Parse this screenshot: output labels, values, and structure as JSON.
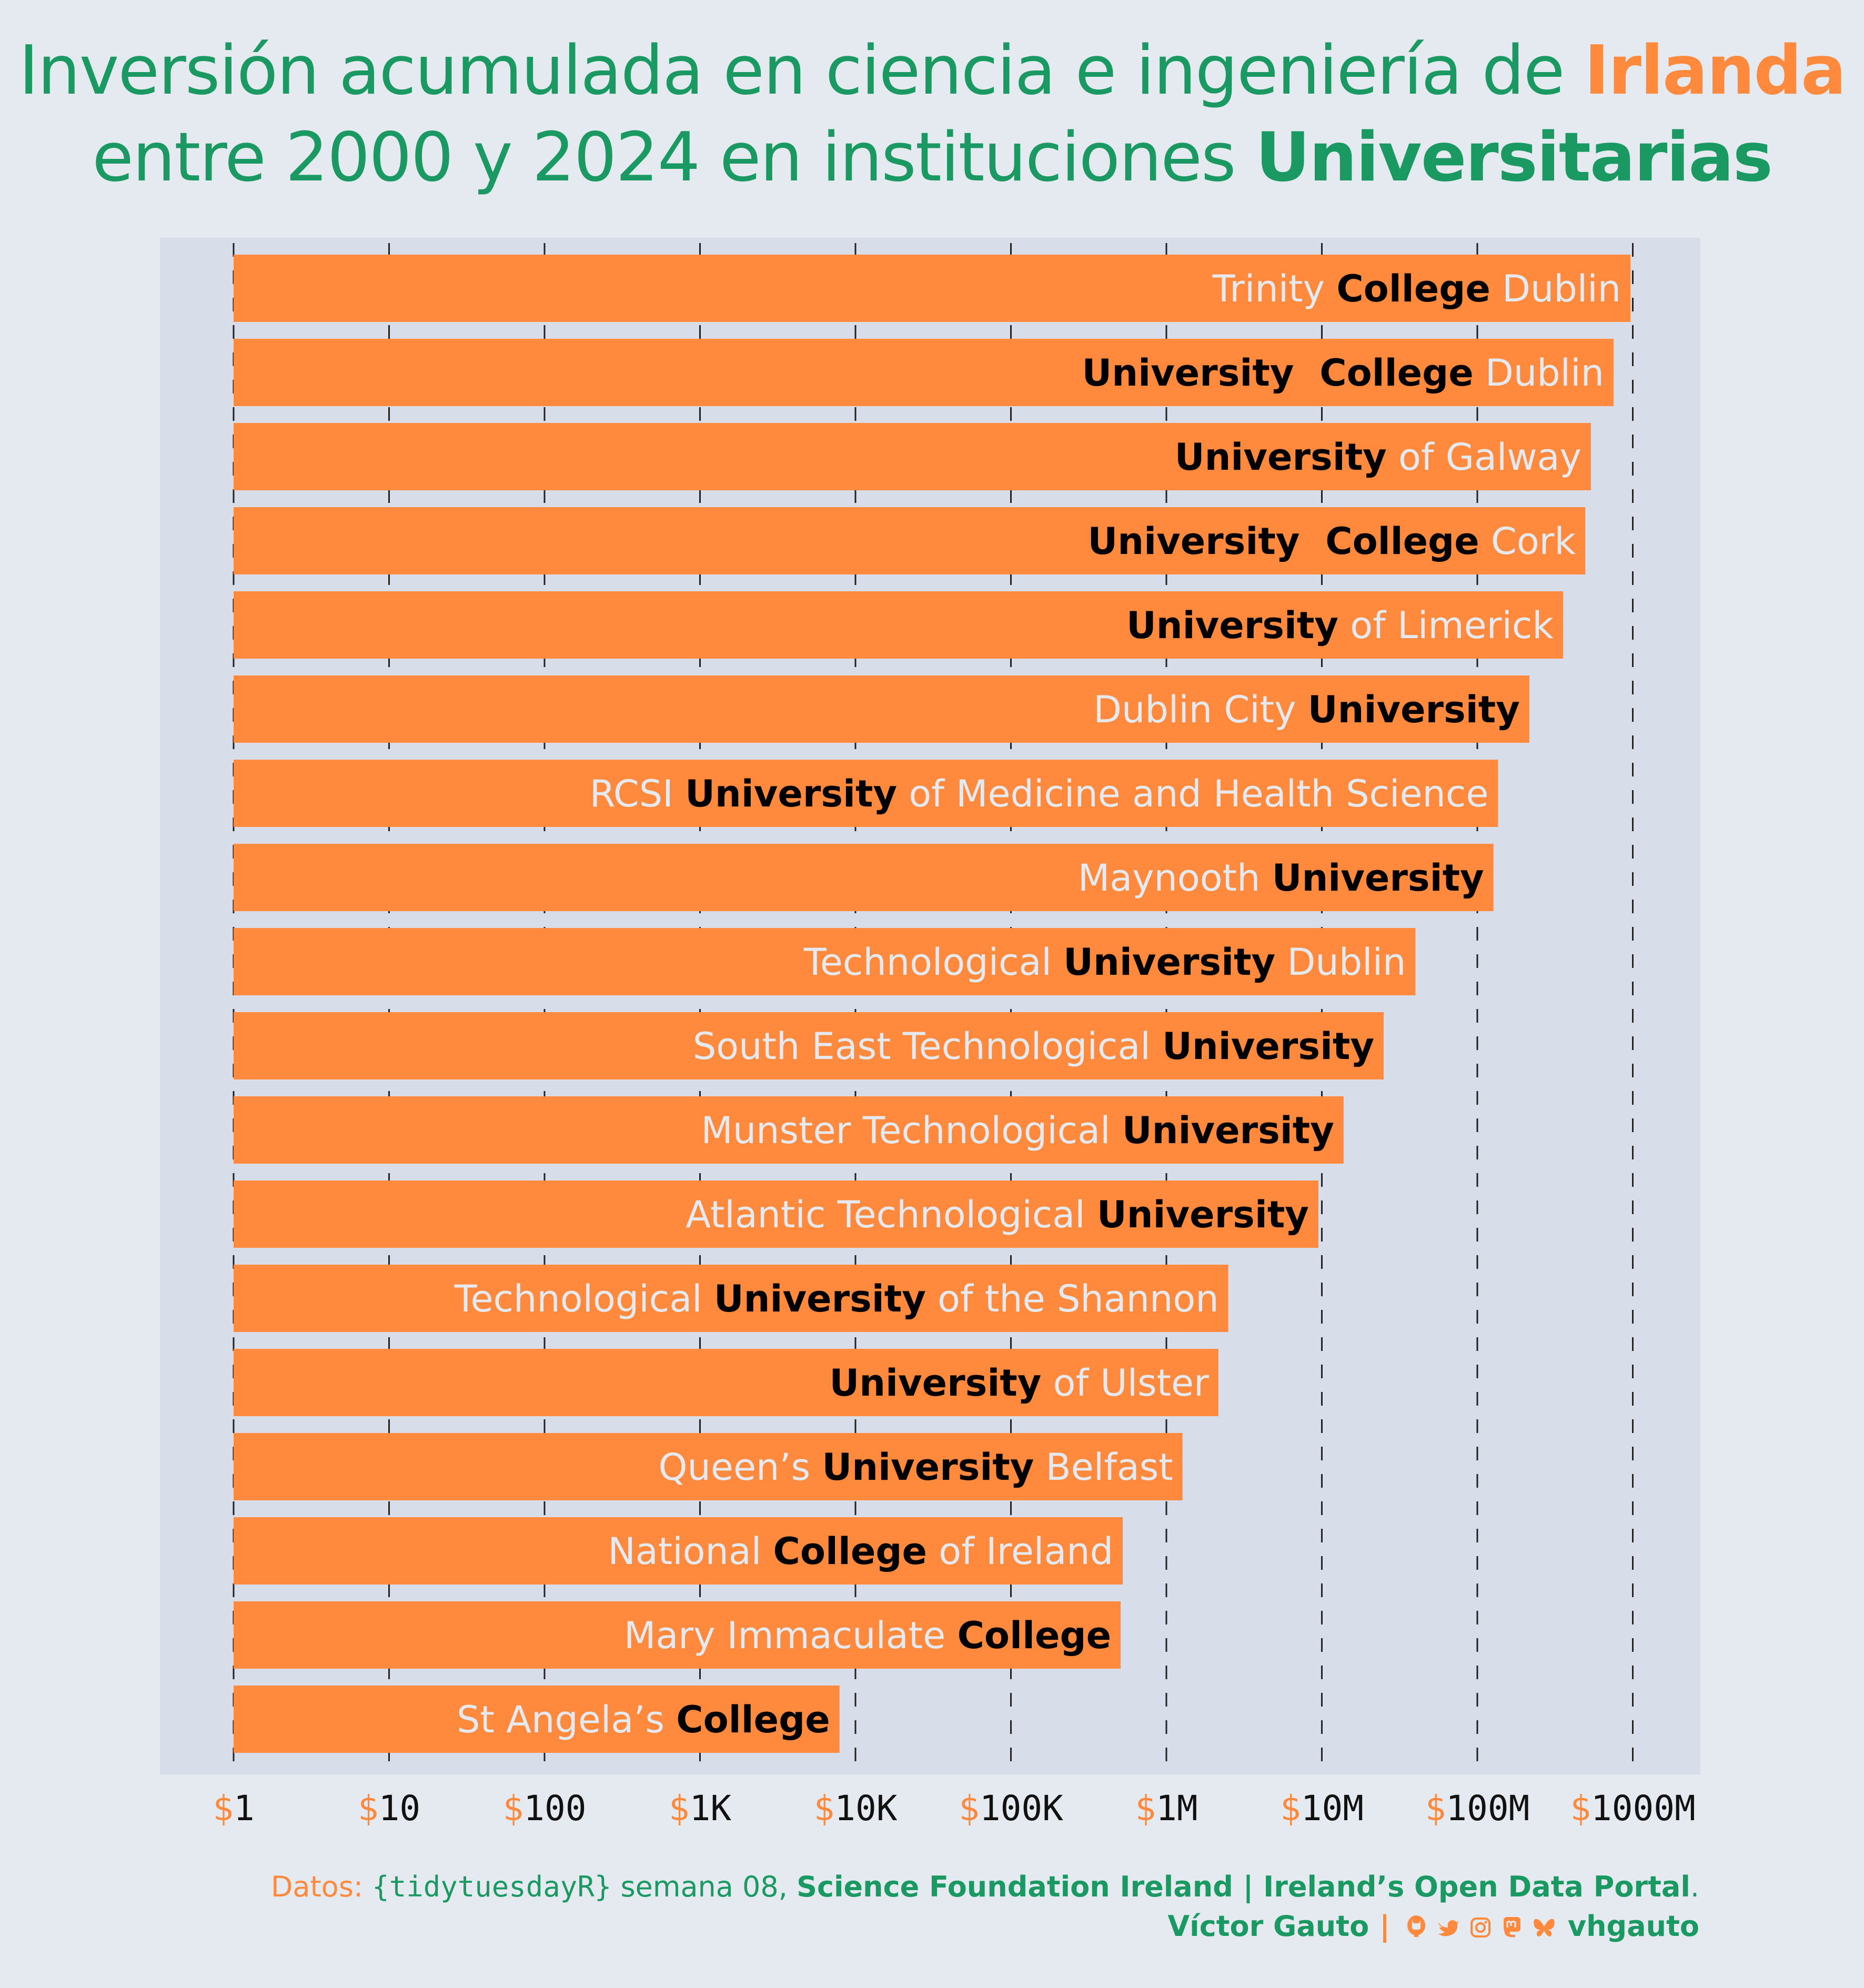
{
  "title": {
    "line1_prefix": "Inversión acumulada en ciencia e ingeniería de ",
    "line1_highlight": "Irlanda",
    "line2_prefix": "entre 2000 y 2024 en instituciones ",
    "line2_highlight": "Universitarias"
  },
  "colors": {
    "background": "#e5e9f0",
    "panel": "#d8dee9",
    "bar": "#ff8a3d",
    "title_green": "#1a9a62",
    "label_light": "#e5e9f0",
    "label_bold": "#000000",
    "grid": "#222222"
  },
  "caption": {
    "data_label": "Datos: ",
    "source_pkg": "{tidytuesdayR}",
    "week": " semana 08, ",
    "sources": "Science Foundation Ireland | Ireland’s Open Data Portal",
    "period": ".",
    "author": "Víctor Gauto",
    "separator": "|",
    "social_icons": [
      "github-icon",
      "twitter-icon",
      "instagram-icon",
      "mastodon-icon",
      "bluesky-icon"
    ],
    "handle": "vhgauto"
  },
  "chart_data": {
    "type": "bar",
    "orientation": "horizontal",
    "scale": "log10",
    "title": "Inversión acumulada en ciencia e ingeniería de Irlanda entre 2000 y 2024 en instituciones Universitarias",
    "xlabel": "",
    "ylabel": "",
    "xlim": [
      1,
      1000000000
    ],
    "grid": "vertical dashed at each decade",
    "x_ticks": [
      {
        "value": 1,
        "prefix": "$",
        "label": "1"
      },
      {
        "value": 10,
        "prefix": "$",
        "label": "10"
      },
      {
        "value": 100,
        "prefix": "$",
        "label": "100"
      },
      {
        "value": 1000,
        "prefix": "$",
        "label": "1K"
      },
      {
        "value": 10000,
        "prefix": "$",
        "label": "10K"
      },
      {
        "value": 100000,
        "prefix": "$",
        "label": "100K"
      },
      {
        "value": 1000000,
        "prefix": "$",
        "label": "1M"
      },
      {
        "value": 10000000,
        "prefix": "$",
        "label": "10M"
      },
      {
        "value": 100000000,
        "prefix": "$",
        "label": "100M"
      },
      {
        "value": 1000000000,
        "prefix": "$",
        "label": "1000M"
      }
    ],
    "categories": [
      "Trinity College Dublin",
      "University College Dublin",
      "University of Galway",
      "University College Cork",
      "University of Limerick",
      "Dublin City University",
      "RCSI University of Medicine and Health Science",
      "Maynooth University",
      "Technological University Dublin",
      "South East Technological University",
      "Munster Technological University",
      "Atlantic Technological University",
      "Technological University of the Shannon",
      "University of Ulster",
      "Queen’s University Belfast",
      "National College of Ireland",
      "Mary Immaculate College",
      "St Angela’s College"
    ],
    "values": [
      966000000,
      752000000,
      538000000,
      494000000,
      356000000,
      216000000,
      136000000,
      127000000,
      40000000,
      25000000,
      13800000,
      9500000,
      2500000,
      2160000,
      1270000,
      524000,
      508000,
      7900
    ],
    "label_parts": [
      [
        {
          "t": "Trinity ",
          "b": false
        },
        {
          "t": "College",
          "b": true
        },
        {
          "t": " Dublin",
          "b": false
        }
      ],
      [
        {
          "t": "University  College",
          "b": true
        },
        {
          "t": " Dublin",
          "b": false
        }
      ],
      [
        {
          "t": "University",
          "b": true
        },
        {
          "t": " of Galway",
          "b": false
        }
      ],
      [
        {
          "t": "University  College",
          "b": true
        },
        {
          "t": " Cork",
          "b": false
        }
      ],
      [
        {
          "t": "University",
          "b": true
        },
        {
          "t": " of Limerick",
          "b": false
        }
      ],
      [
        {
          "t": "Dublin City ",
          "b": false
        },
        {
          "t": "University",
          "b": true
        }
      ],
      [
        {
          "t": "RCSI ",
          "b": false
        },
        {
          "t": "University",
          "b": true
        },
        {
          "t": " of Medicine and Health Science",
          "b": false
        }
      ],
      [
        {
          "t": "Maynooth ",
          "b": false
        },
        {
          "t": "University",
          "b": true
        }
      ],
      [
        {
          "t": "Technological ",
          "b": false
        },
        {
          "t": "University",
          "b": true
        },
        {
          "t": " Dublin",
          "b": false
        }
      ],
      [
        {
          "t": "South East Technological ",
          "b": false
        },
        {
          "t": "University",
          "b": true
        }
      ],
      [
        {
          "t": "Munster Technological ",
          "b": false
        },
        {
          "t": "University",
          "b": true
        }
      ],
      [
        {
          "t": "Atlantic Technological ",
          "b": false
        },
        {
          "t": "University",
          "b": true
        }
      ],
      [
        {
          "t": "Technological ",
          "b": false
        },
        {
          "t": "University",
          "b": true
        },
        {
          "t": " of the Shannon",
          "b": false
        }
      ],
      [
        {
          "t": "University",
          "b": true
        },
        {
          "t": " of Ulster",
          "b": false
        }
      ],
      [
        {
          "t": "Queen’s ",
          "b": false
        },
        {
          "t": "University",
          "b": true
        },
        {
          "t": " Belfast",
          "b": false
        }
      ],
      [
        {
          "t": "National ",
          "b": false
        },
        {
          "t": "College",
          "b": true
        },
        {
          "t": " of Ireland",
          "b": false
        }
      ],
      [
        {
          "t": "Mary Immaculate ",
          "b": false
        },
        {
          "t": "College",
          "b": true
        }
      ],
      [
        {
          "t": "St Angela’s ",
          "b": false
        },
        {
          "t": "College",
          "b": true
        }
      ]
    ]
  }
}
